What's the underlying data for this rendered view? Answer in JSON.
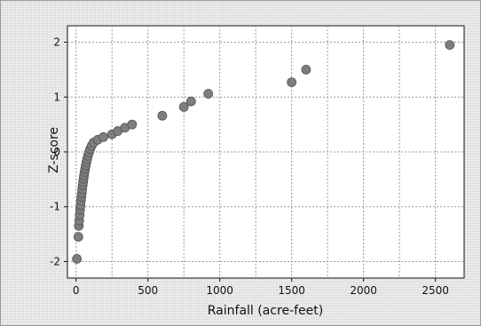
{
  "chart_data": {
    "type": "scatter",
    "xlabel": "Rainfall (acre-feet)",
    "ylabel": "Z-score",
    "xlim": [
      -60,
      2700
    ],
    "ylim": [
      -2.3,
      2.3
    ],
    "xticks": [
      0,
      500,
      1000,
      1500,
      2000,
      2500
    ],
    "yticks": [
      -2,
      -1,
      0,
      1,
      2
    ],
    "grid": true,
    "marker_color": "#7e7e7e",
    "series": [
      {
        "points": [
          {
            "x": 6,
            "y": -1.95
          },
          {
            "x": 16,
            "y": -1.55
          },
          {
            "x": 19,
            "y": -1.35
          },
          {
            "x": 22,
            "y": -1.25
          },
          {
            "x": 25,
            "y": -1.15
          },
          {
            "x": 28,
            "y": -1.05
          },
          {
            "x": 31,
            "y": -0.97
          },
          {
            "x": 34,
            "y": -0.89
          },
          {
            "x": 37,
            "y": -0.82
          },
          {
            "x": 40,
            "y": -0.75
          },
          {
            "x": 43,
            "y": -0.68
          },
          {
            "x": 46,
            "y": -0.61
          },
          {
            "x": 49,
            "y": -0.55
          },
          {
            "x": 52,
            "y": -0.49
          },
          {
            "x": 55,
            "y": -0.43
          },
          {
            "x": 59,
            "y": -0.37
          },
          {
            "x": 63,
            "y": -0.31
          },
          {
            "x": 67,
            "y": -0.25
          },
          {
            "x": 72,
            "y": -0.19
          },
          {
            "x": 77,
            "y": -0.13
          },
          {
            "x": 83,
            "y": -0.07
          },
          {
            "x": 90,
            "y": -0.01
          },
          {
            "x": 98,
            "y": 0.05
          },
          {
            "x": 108,
            "y": 0.11
          },
          {
            "x": 122,
            "y": 0.17
          },
          {
            "x": 150,
            "y": 0.22
          },
          {
            "x": 190,
            "y": 0.27
          },
          {
            "x": 250,
            "y": 0.32
          },
          {
            "x": 290,
            "y": 0.38
          },
          {
            "x": 340,
            "y": 0.44
          },
          {
            "x": 390,
            "y": 0.5
          },
          {
            "x": 600,
            "y": 0.66
          },
          {
            "x": 750,
            "y": 0.82
          },
          {
            "x": 800,
            "y": 0.92
          },
          {
            "x": 920,
            "y": 1.06
          },
          {
            "x": 1500,
            "y": 1.27
          },
          {
            "x": 1600,
            "y": 1.5
          },
          {
            "x": 2600,
            "y": 1.95
          }
        ]
      }
    ]
  }
}
